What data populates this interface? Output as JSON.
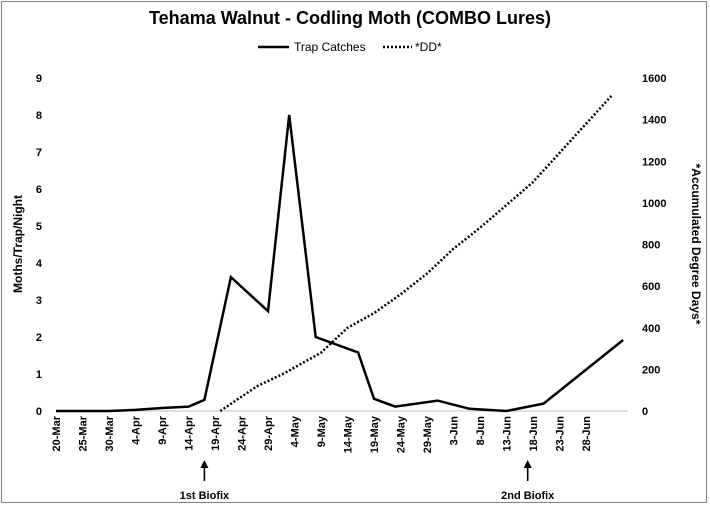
{
  "chart_data": {
    "type": "line",
    "title": "Tehama Walnut - Codling Moth (COMBO Lures)",
    "ylabel": "Moths/Trap/Night",
    "y2label": "*Accumulated Degree Days*",
    "ylim": [
      0,
      9
    ],
    "y2lim": [
      0,
      1600
    ],
    "yticks": [
      "0",
      "1",
      "2",
      "3",
      "4",
      "5",
      "6",
      "7",
      "8",
      "9"
    ],
    "y2ticks": [
      "0",
      "200",
      "400",
      "600",
      "800",
      "1000",
      "1200",
      "1400",
      "1600"
    ],
    "x_tick_labels": [
      "20-Mar",
      "25-Mar",
      "30-Mar",
      "4-Apr",
      "9-Apr",
      "14-Apr",
      "19-Apr",
      "24-Apr",
      "29-Apr",
      "4-May",
      "9-May",
      "14-May",
      "19-May",
      "24-May",
      "29-May",
      "3-Jun",
      "8-Jun",
      "13-Jun",
      "18-Jun",
      "23-Jun",
      "28-Jun"
    ],
    "legend": [
      "Trap Catches",
      "*DD*"
    ],
    "legend_position": "top-center",
    "grid": false,
    "series": [
      {
        "name": "Trap Catches",
        "axis": "left",
        "style": "solid",
        "x": [
          "20-Mar",
          "30-Mar",
          "4-Apr",
          "9-Apr",
          "14-Apr",
          "17-Apr",
          "22-Apr",
          "29-Apr",
          "3-May",
          "8-May",
          "16-May",
          "19-May",
          "23-May",
          "31-May",
          "6-Jun",
          "13-Jun",
          "20-Jun",
          "5-Jul"
        ],
        "values": [
          0,
          0,
          0.03,
          0.08,
          0.12,
          0.3,
          3.62,
          2.7,
          8.0,
          2.0,
          1.58,
          0.33,
          0.12,
          0.28,
          0.06,
          0.0,
          0.2,
          1.92
        ]
      },
      {
        "name": "*DD*",
        "axis": "right",
        "style": "dotted",
        "x": [
          "20-Apr",
          "27-Apr",
          "2-May",
          "9-May",
          "14-May",
          "19-May",
          "24-May",
          "29-May",
          "3-Jun",
          "8-Jun",
          "13-Jun",
          "18-Jun",
          "23-Jun",
          "28-Jun",
          "3-Jul"
        ],
        "values": [
          0,
          120,
          180,
          280,
          400,
          470,
          560,
          660,
          780,
          880,
          990,
          1100,
          1240,
          1380,
          1520
        ]
      }
    ],
    "annotations": [
      {
        "label": "1st Biofix",
        "x": "17-Apr"
      },
      {
        "label": "2nd Biofix",
        "x": "17-Jun"
      }
    ]
  }
}
